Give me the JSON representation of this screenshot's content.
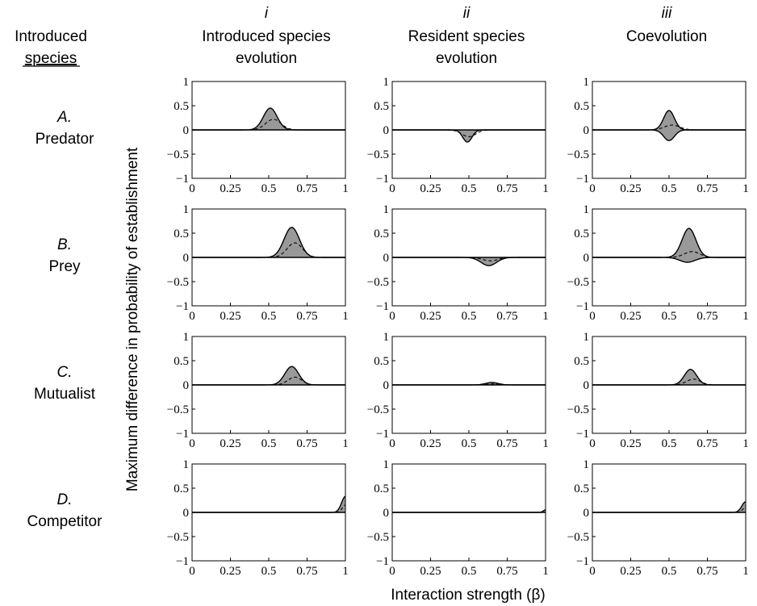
{
  "header": {
    "introduced_label": "Introduced",
    "species_label": "species",
    "columns": [
      {
        "numeral": "i",
        "title_lines": [
          "Introduced species",
          "evolution"
        ]
      },
      {
        "numeral": "ii",
        "title_lines": [
          "Resident species",
          "evolution"
        ]
      },
      {
        "numeral": "iii",
        "title_lines": [
          "Coevolution"
        ]
      }
    ],
    "rows": [
      {
        "letter": "A.",
        "name": "Predator"
      },
      {
        "letter": "B.",
        "name": "Prey"
      },
      {
        "letter": "C.",
        "name": "Mutualist"
      },
      {
        "letter": "D.",
        "name": "Competitor"
      }
    ]
  },
  "axes": {
    "ylabel": "Maximum difference in probability of establishment",
    "xlabel": "Interaction strength (β)"
  },
  "colors": {
    "fill": "#999999",
    "line": "#000000",
    "frame": "#000000"
  },
  "chart_data": {
    "type": "area",
    "layout": "4 rows x 3 columns small multiples",
    "xlim": [
      0,
      1
    ],
    "ylim": [
      -1,
      1
    ],
    "xticks": [
      0,
      0.25,
      0.5,
      0.75,
      1
    ],
    "xtick_labels": [
      "0",
      "0.25",
      "0.5",
      "0.75",
      "1"
    ],
    "yticks": [
      1,
      0.5,
      0,
      -0.5,
      -1
    ],
    "ytick_labels": [
      "1",
      "0.5",
      "0",
      "−0.5",
      "−1"
    ],
    "grid": false,
    "panels": [
      {
        "row": "A",
        "col": "i",
        "upper": {
          "peak_x": 0.51,
          "height": 0.45,
          "width": 0.045
        },
        "lower": null,
        "mean": {
          "peak_x": 0.53,
          "height": 0.22,
          "width": 0.05
        }
      },
      {
        "row": "A",
        "col": "ii",
        "upper": null,
        "lower": {
          "peak_x": 0.49,
          "height": -0.25,
          "width": 0.03
        },
        "mean": {
          "peak_x": 0.5,
          "height": -0.14,
          "width": 0.045
        }
      },
      {
        "row": "A",
        "col": "iii",
        "upper": {
          "peak_x": 0.5,
          "height": 0.4,
          "width": 0.035
        },
        "lower": {
          "peak_x": 0.5,
          "height": -0.22,
          "width": 0.035
        },
        "mean": {
          "peak_x": 0.52,
          "height": 0.1,
          "width": 0.05
        }
      },
      {
        "row": "B",
        "col": "i",
        "upper": {
          "peak_x": 0.65,
          "height": 0.62,
          "width": 0.05
        },
        "lower": null,
        "mean": {
          "peak_x": 0.67,
          "height": 0.3,
          "width": 0.05
        }
      },
      {
        "row": "B",
        "col": "ii",
        "upper": null,
        "lower": {
          "peak_x": 0.63,
          "height": -0.17,
          "width": 0.05
        },
        "mean": {
          "peak_x": 0.64,
          "height": -0.07,
          "width": 0.05
        }
      },
      {
        "row": "B",
        "col": "iii",
        "upper": {
          "peak_x": 0.63,
          "height": 0.6,
          "width": 0.045
        },
        "lower": {
          "peak_x": 0.62,
          "height": -0.1,
          "width": 0.05
        },
        "mean": {
          "peak_x": 0.65,
          "height": 0.12,
          "width": 0.05
        }
      },
      {
        "row": "C",
        "col": "i",
        "upper": {
          "peak_x": 0.65,
          "height": 0.38,
          "width": 0.045
        },
        "lower": null,
        "mean": {
          "peak_x": 0.67,
          "height": 0.16,
          "width": 0.045
        }
      },
      {
        "row": "C",
        "col": "ii",
        "upper": {
          "peak_x": 0.65,
          "height": 0.05,
          "width": 0.04
        },
        "lower": null,
        "mean": {
          "peak_x": 0.66,
          "height": 0.02,
          "width": 0.04
        }
      },
      {
        "row": "C",
        "col": "iii",
        "upper": {
          "peak_x": 0.64,
          "height": 0.32,
          "width": 0.04
        },
        "lower": null,
        "mean": {
          "peak_x": 0.66,
          "height": 0.12,
          "width": 0.045
        }
      },
      {
        "row": "D",
        "col": "i",
        "upper": {
          "peak_x": 1.0,
          "height": 0.33,
          "width": 0.025
        },
        "lower": null,
        "mean": {
          "peak_x": 1.0,
          "height": 0.15,
          "width": 0.02
        }
      },
      {
        "row": "D",
        "col": "ii",
        "upper": {
          "peak_x": 1.0,
          "height": 0.05,
          "width": 0.015
        },
        "lower": null,
        "mean": null
      },
      {
        "row": "D",
        "col": "iii",
        "upper": {
          "peak_x": 1.0,
          "height": 0.22,
          "width": 0.025
        },
        "lower": null,
        "mean": {
          "peak_x": 1.0,
          "height": 0.1,
          "width": 0.02
        }
      }
    ]
  }
}
